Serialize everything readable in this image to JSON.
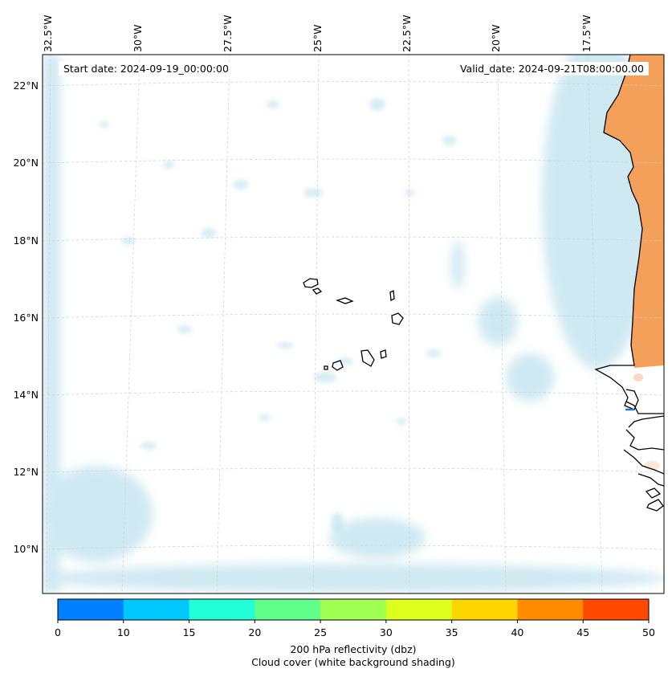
{
  "annotations": {
    "start_date": "Start date: 2024-09-19_00:00:00",
    "valid_date": "Valid_date: 2024-09-21T08:00:00.00"
  },
  "lon_ticks": [
    "32.5°W",
    "30°W",
    "27.5°W",
    "25°W",
    "22.5°W",
    "20°W",
    "17.5°W"
  ],
  "lat_ticks": [
    "22°N",
    "20°N",
    "18°N",
    "16°N",
    "14°N",
    "12°N",
    "10°N"
  ],
  "colorbar": {
    "ticks": [
      "0",
      "10",
      "15",
      "20",
      "25",
      "30",
      "35",
      "40",
      "45",
      "50"
    ],
    "colors": [
      "#0080ff",
      "#00c8ff",
      "#22ffd6",
      "#60ff8a",
      "#9fff52",
      "#dcff1e",
      "#ffd700",
      "#ff8c00",
      "#ff4800"
    ],
    "label_line1": "200 hPa reflectivity (dbz)",
    "label_line2": "Cloud cover (white background shading)"
  },
  "colors": {
    "cloud": "#a9d8e8",
    "land_reflectivity": "#f5a05a",
    "coastline": "#000000",
    "gridline": "#cccccc"
  }
}
